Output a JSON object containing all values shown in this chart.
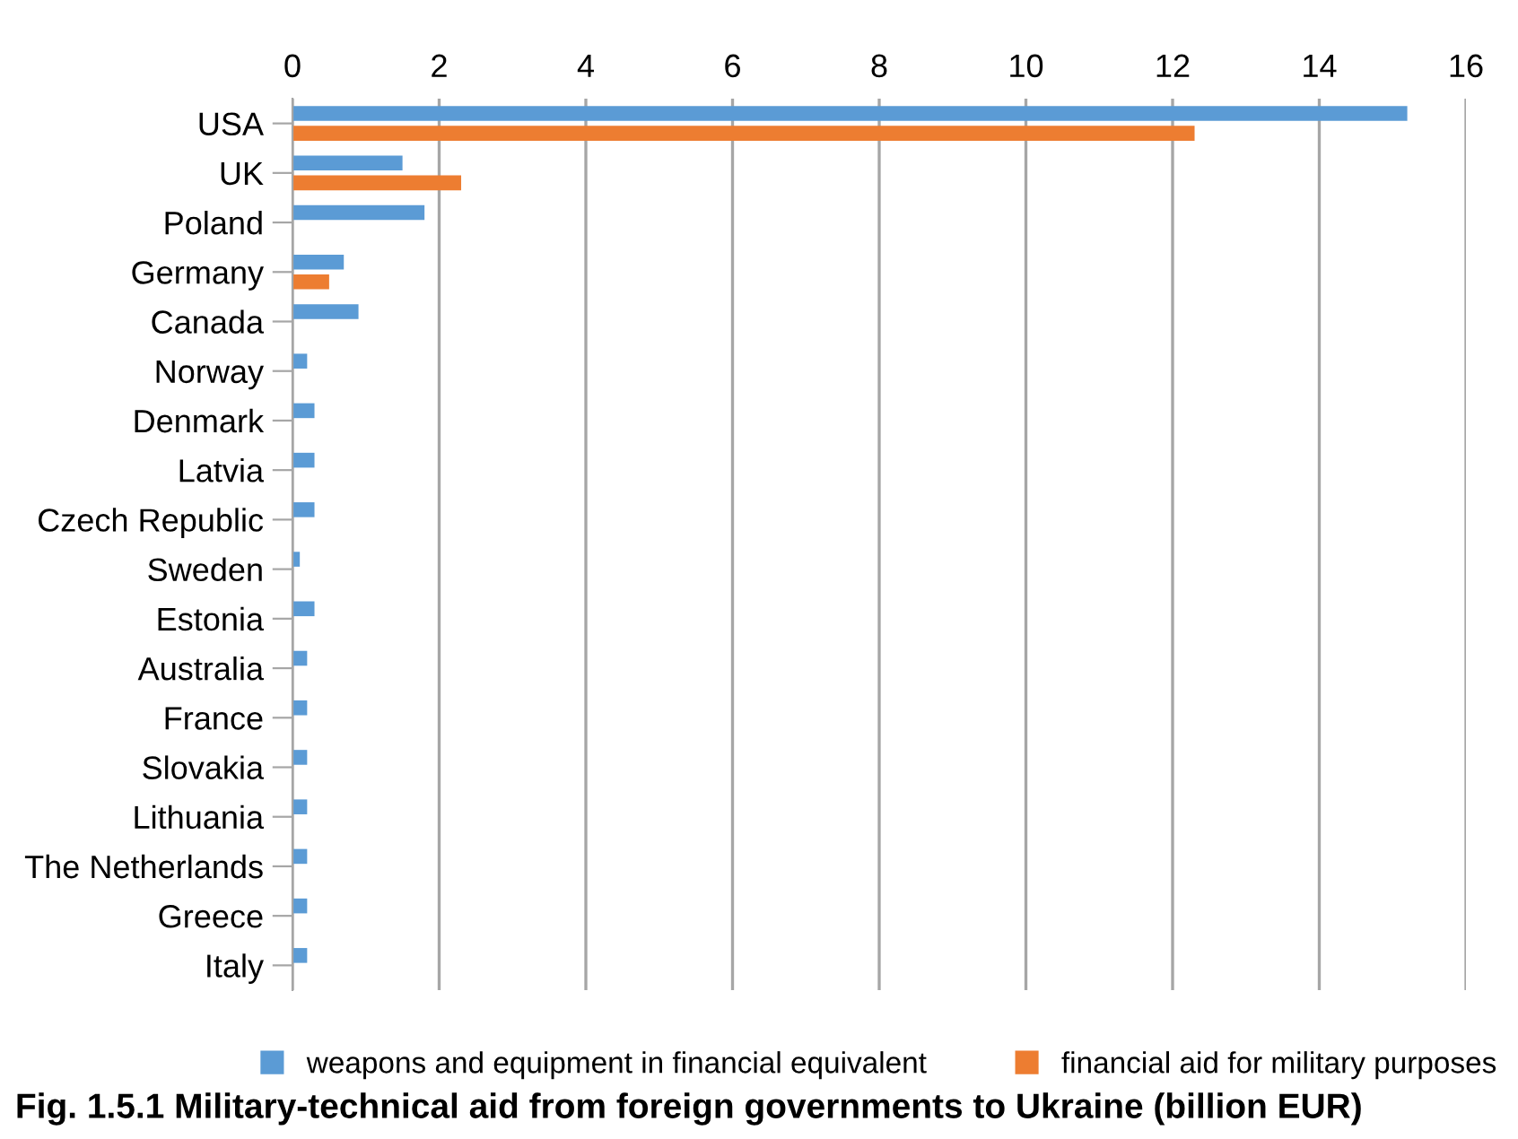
{
  "chart_data": {
    "type": "bar",
    "orientation": "horizontal",
    "categories": [
      "USA",
      "UK",
      "Poland",
      "Germany",
      "Canada",
      "Norway",
      "Denmark",
      "Latvia",
      "Czech Republic",
      "Sweden",
      "Estonia",
      "Australia",
      "France",
      "Slovakia",
      "Lithuania",
      "The Netherlands",
      "Greece",
      "Italy"
    ],
    "series": [
      {
        "name": "weapons and equipment in financial equivalent",
        "color": "#5b9bd5",
        "values": [
          15.2,
          1.5,
          1.8,
          0.7,
          0.9,
          0.2,
          0.3,
          0.3,
          0.3,
          0.1,
          0.3,
          0.2,
          0.2,
          0.2,
          0.2,
          0.2,
          0.2,
          0.2
        ]
      },
      {
        "name": "financial aid for military purposes",
        "color": "#ed7d31",
        "values": [
          12.3,
          2.3,
          null,
          0.5,
          null,
          null,
          null,
          null,
          null,
          null,
          null,
          null,
          null,
          null,
          null,
          null,
          null,
          null
        ]
      }
    ],
    "xlim": [
      0,
      16
    ],
    "xticks": [
      0,
      2,
      4,
      6,
      8,
      10,
      12,
      14,
      16
    ],
    "grid": "x",
    "legend": "bottom",
    "annotations": [
      "Fig. 1.5.1 Military-technical aid from foreign governments to Ukraine (billion EUR)"
    ]
  }
}
